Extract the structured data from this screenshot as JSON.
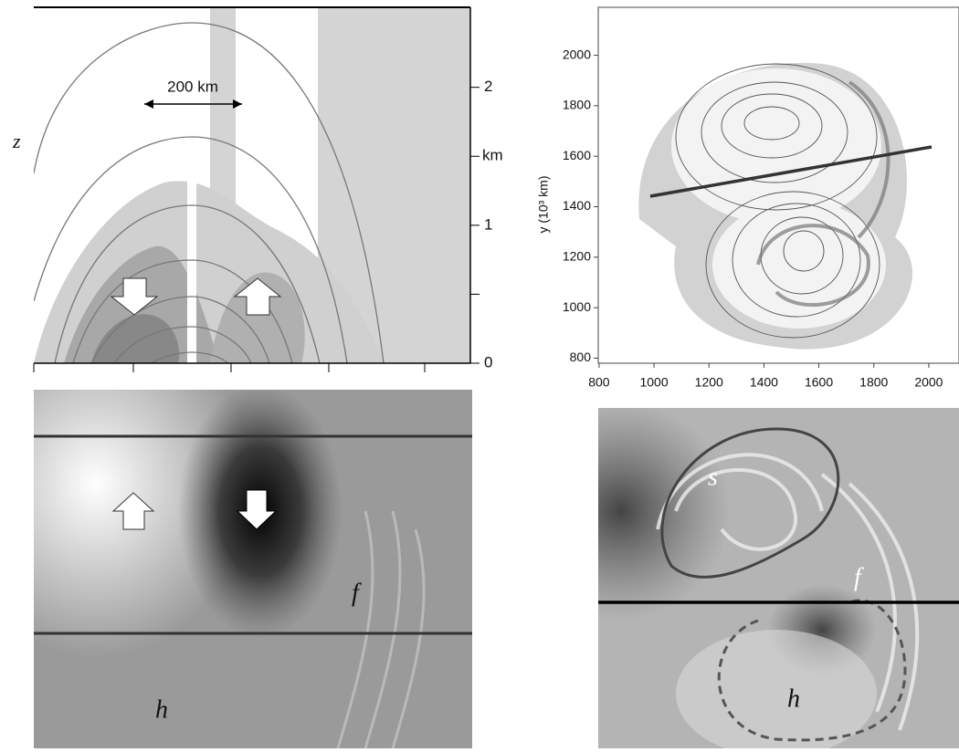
{
  "panels": {
    "top_left": {
      "z_label": "z",
      "scale_label": "200 km",
      "unit_label": "km",
      "zlim": [
        0,
        2.58
      ],
      "zticks": [
        0,
        1,
        2
      ],
      "minor_zticks": [
        0.5,
        1.5
      ]
    },
    "top_right": {
      "y_label": "y (10³ km)",
      "xlim": [
        797,
        2110
      ],
      "ylim": [
        780,
        2190
      ],
      "xticks": [
        800,
        1000,
        1200,
        1400,
        1600,
        1800,
        2000
      ],
      "yticks": [
        800,
        1000,
        1200,
        1400,
        1600,
        1800,
        2000
      ]
    },
    "bottom_left": {
      "labels": [
        "f",
        "h"
      ]
    },
    "bottom_right": {
      "labels": [
        "s",
        "f",
        "h"
      ]
    }
  }
}
